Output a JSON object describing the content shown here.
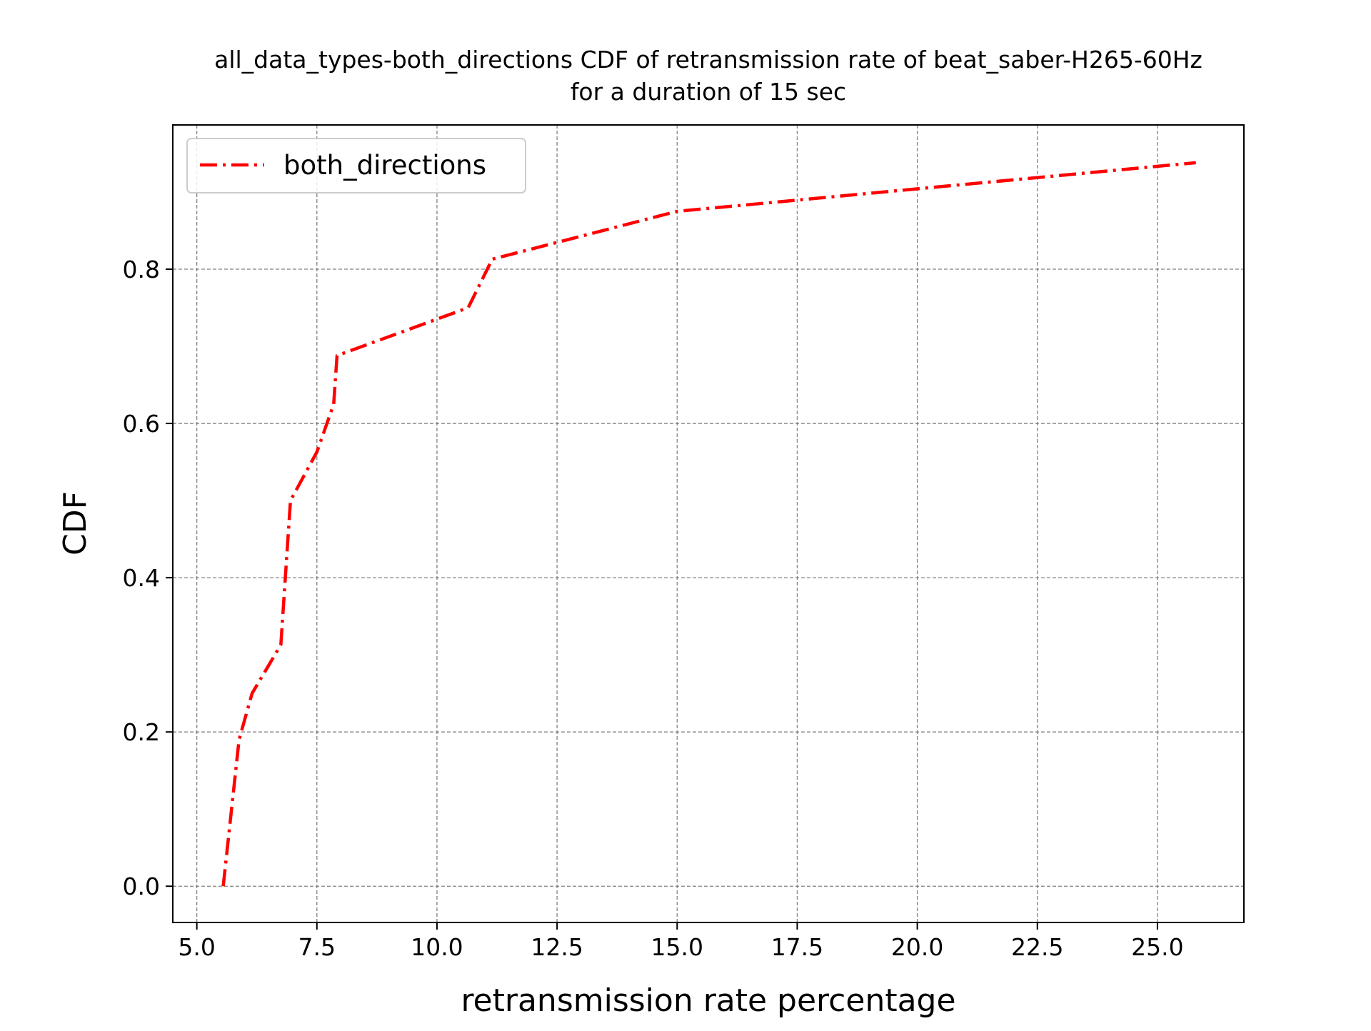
{
  "chart_data": {
    "type": "line",
    "title": "all_data_types-both_directions CDF of retransmission rate of beat_saber-H265-60Hz\nfor a duration of 15 sec",
    "xlabel": "retransmission rate percentage",
    "ylabel": "CDF",
    "xlim": [
      4.5,
      26.8
    ],
    "ylim": [
      -0.047,
      0.987
    ],
    "xticks": [
      5.0,
      7.5,
      10.0,
      12.5,
      15.0,
      17.5,
      20.0,
      22.5,
      25.0
    ],
    "xtick_labels": [
      "5.0",
      "7.5",
      "10.0",
      "12.5",
      "15.0",
      "17.5",
      "20.0",
      "22.5",
      "25.0"
    ],
    "yticks": [
      0.0,
      0.2,
      0.4,
      0.6,
      0.8
    ],
    "ytick_labels": [
      "0.0",
      "0.2",
      "0.4",
      "0.6",
      "0.8"
    ],
    "grid": true,
    "legend_position": "upper-left",
    "series": [
      {
        "name": "both_directions",
        "color": "#ff0000",
        "line_style": "dash-dot",
        "x": [
          5.55,
          5.88,
          6.15,
          6.75,
          6.95,
          7.5,
          7.85,
          7.92,
          10.65,
          11.15,
          15.0,
          25.8
        ],
        "y": [
          0.0,
          0.19,
          0.25,
          0.313,
          0.5,
          0.563,
          0.625,
          0.688,
          0.75,
          0.813,
          0.875,
          0.938
        ]
      }
    ]
  }
}
